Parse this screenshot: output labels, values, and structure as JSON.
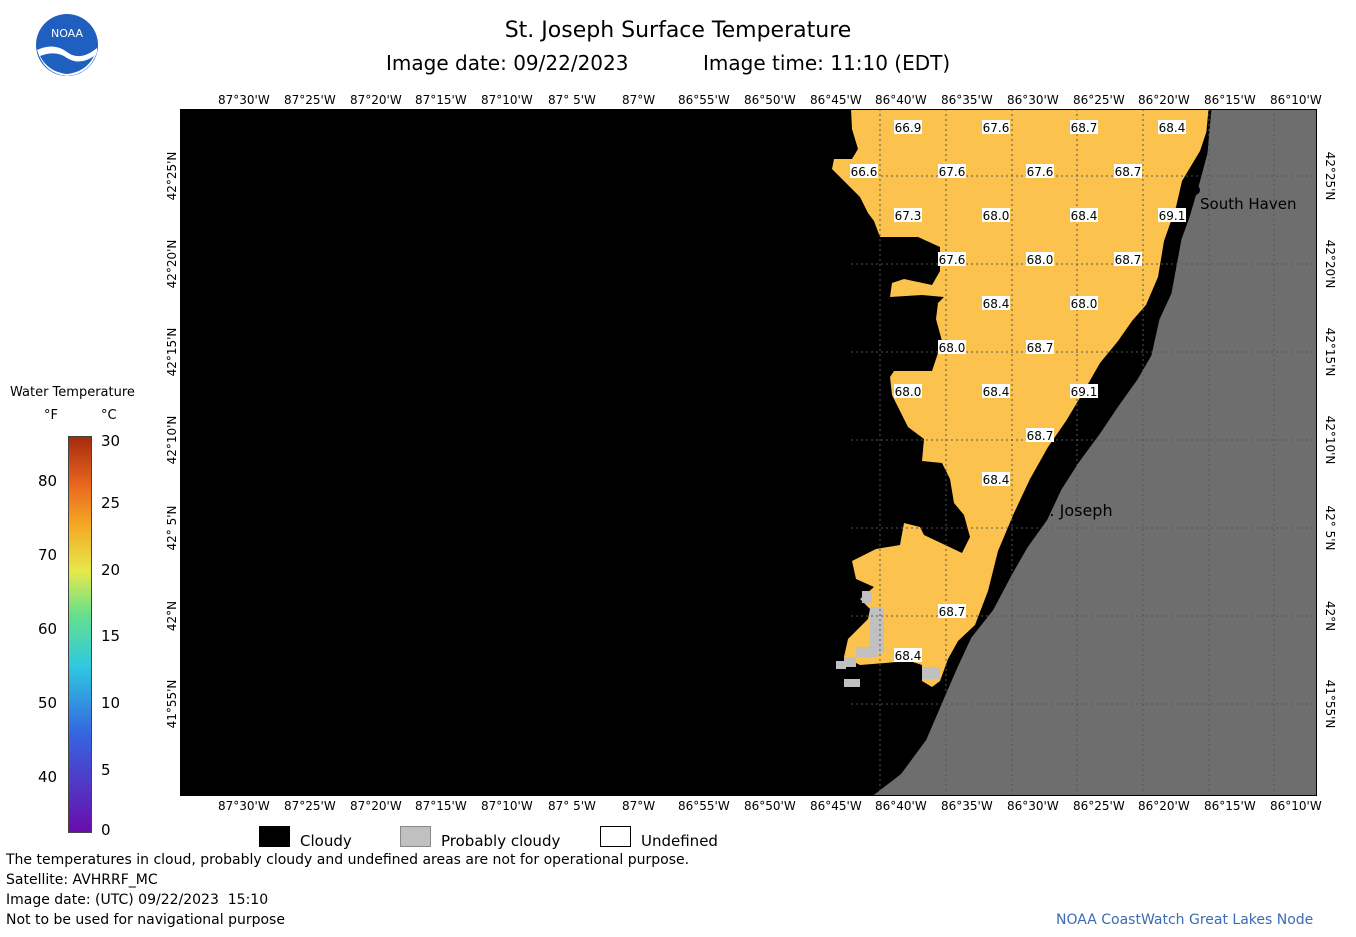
{
  "header": {
    "title": "St. Joseph Surface Temperature",
    "image_date": "Image date: 09/22/2023",
    "image_time": "Image time: 11:10 (EDT)"
  },
  "logo": {
    "text": "NOAA"
  },
  "map": {
    "lon_labels": [
      "87°30'W",
      "87°25'W",
      "87°20'W",
      "87°15'W",
      "87°10'W",
      "87° 5'W",
      "87°W",
      "86°55'W",
      "86°50'W",
      "86°45'W",
      "86°40'W",
      "86°35'W",
      "86°30'W",
      "86°25'W",
      "86°20'W",
      "86°15'W",
      "86°10'W"
    ],
    "lat_labels": [
      "42°25'N",
      "42°20'N",
      "42°15'N",
      "42°10'N",
      "42° 5'N",
      "42°N",
      "41°55'N"
    ],
    "temperature_labels": [
      "66.9",
      "67.6",
      "68.7",
      "68.4",
      "66.6",
      "67.6",
      "67.6",
      "68.7",
      "67.3",
      "68.0",
      "68.4",
      "69.1",
      "67.6",
      "68.0",
      "68.7",
      "68.4",
      "68.0",
      "68.0",
      "68.7",
      "68.0",
      "68.4",
      "69.1",
      "68.7",
      "68.4",
      "68.7",
      "68.4"
    ],
    "places": [
      {
        "name": "South Haven"
      },
      {
        "name": "St. Joseph"
      }
    ],
    "colors": {
      "cloudy": "#000000",
      "land": "#6e6e6e",
      "water": "#fbc24e",
      "probably_cloudy": "#c0c0c0"
    }
  },
  "legend": {
    "title": "Water Temperature",
    "unit_f": "°F",
    "unit_c": "°C",
    "f_ticks": [
      "80",
      "70",
      "60",
      "50",
      "40"
    ],
    "c_ticks": [
      "30",
      "25",
      "20",
      "15",
      "10",
      "5",
      "0"
    ],
    "colors": [
      "#4b0a7a",
      "#3566e0",
      "#2fc9e0",
      "#66e08c",
      "#e6e94a",
      "#f5a623",
      "#e8661f",
      "#a52a0f"
    ]
  },
  "key": {
    "cloudy": "Cloudy",
    "probably_cloudy": "Probably cloudy",
    "undefined": "Undefined"
  },
  "footer": {
    "disclaimer": "The temperatures in cloud, probably cloudy and undefined areas are not for operational purpose.",
    "satellite": "Satellite: AVHRRF_MC",
    "utc_date": "Image date: (UTC) 09/22/2023  15:10",
    "nav_warning": "Not to be used for navigational purpose",
    "credit": "NOAA CoastWatch Great Lakes Node"
  }
}
